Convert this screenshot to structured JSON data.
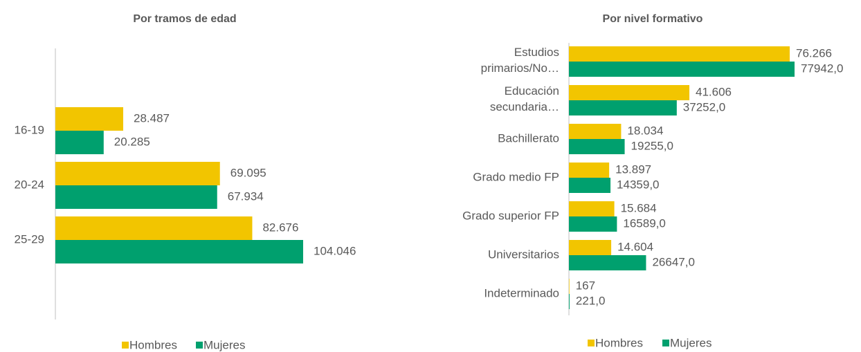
{
  "chart_data": [
    {
      "type": "hbar",
      "title": "Por tramos de edad",
      "categories": [
        "16-19",
        "20-24",
        "25-29"
      ],
      "series": [
        {
          "name": "Hombres",
          "color": "#f2c500",
          "values": [
            28487,
            69095,
            82676
          ],
          "value_labels": [
            "28.487",
            "69.095",
            "82.676"
          ]
        },
        {
          "name": "Mujeres",
          "color": "#00a06e",
          "values": [
            20285,
            67934,
            104046
          ],
          "value_labels": [
            "20.285",
            "67.934",
            "104.046"
          ]
        }
      ]
    },
    {
      "type": "hbar",
      "title": "Por nivel formativo",
      "categories": [
        "Estudios primarios/No…",
        "Educación secundaria…",
        "Bachillerato",
        "Grado medio FP",
        "Grado superior FP",
        "Universitarios",
        "Indeterminado"
      ],
      "series": [
        {
          "name": "Hombres",
          "color": "#f2c500",
          "values": [
            76266,
            41606,
            18034,
            13897,
            15684,
            14604,
            167
          ],
          "value_labels": [
            "76.266",
            "41.606",
            "18.034",
            "13.897",
            "15.684",
            "14.604",
            "167"
          ]
        },
        {
          "name": "Mujeres",
          "color": "#00a06e",
          "values": [
            77942,
            37252,
            19255,
            14359,
            16589,
            26647,
            221
          ],
          "value_labels": [
            "77942,0",
            "37252,0",
            "19255,0",
            "14359,0",
            "16589,0",
            "26647,0",
            "221,0"
          ]
        }
      ]
    }
  ]
}
